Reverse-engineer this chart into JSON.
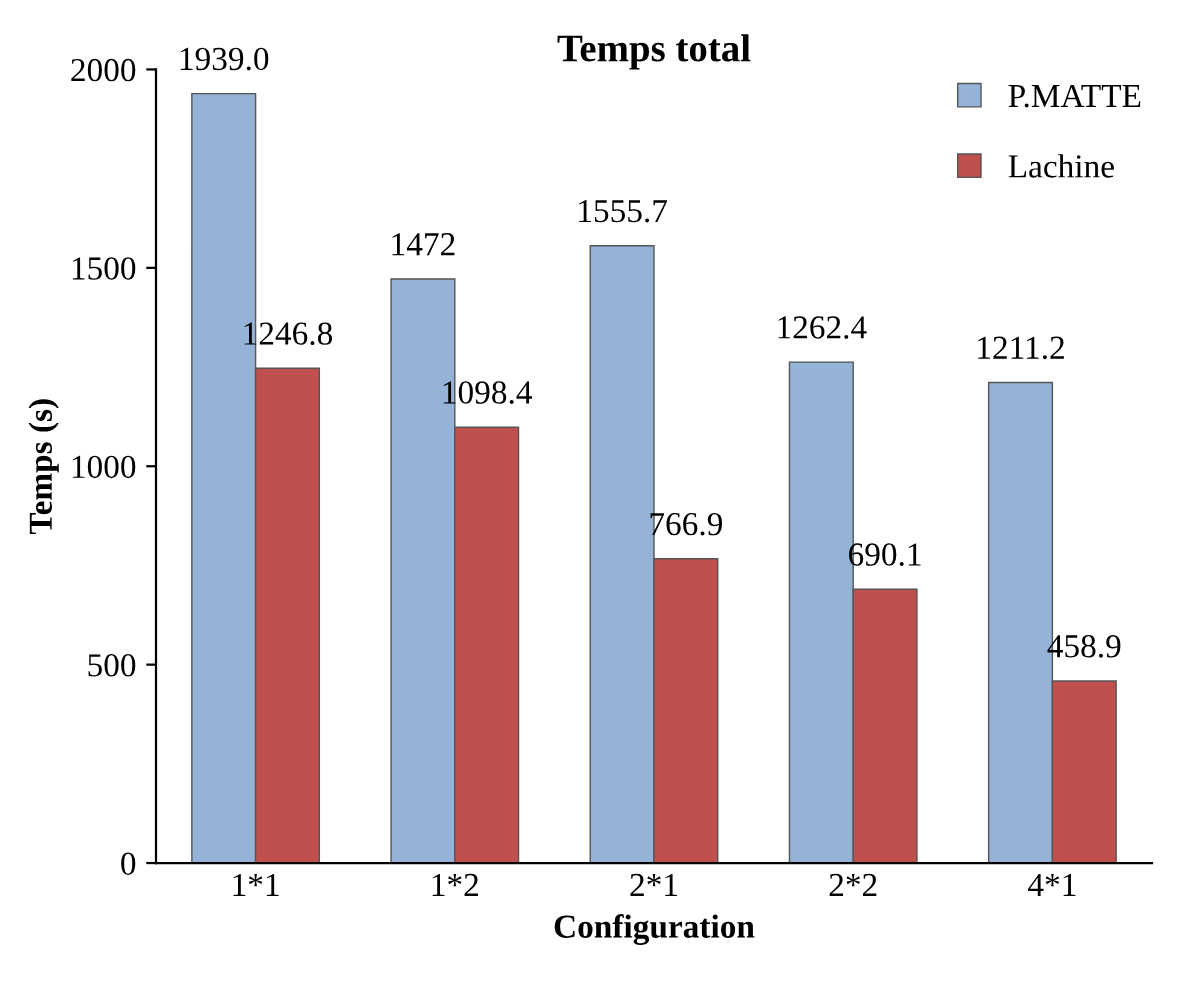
{
  "chart_data": {
    "type": "bar",
    "title": "Temps total",
    "xlabel": "Configuration",
    "ylabel": "Temps (s)",
    "categories": [
      "1*1",
      "1*2",
      "2*1",
      "2*2",
      "4*1"
    ],
    "series": [
      {
        "name": "P.MATTE",
        "color": "#95b3d7",
        "values": [
          1939.0,
          1472,
          1555.7,
          1262.4,
          1211.2
        ],
        "value_labels": [
          "1939.0",
          "1472",
          "1555.7",
          "1262.4",
          "1211.2"
        ]
      },
      {
        "name": "Lachine",
        "color": "#c0504d",
        "values": [
          1246.8,
          1098.4,
          766.9,
          690.1,
          458.9
        ],
        "value_labels": [
          "1246.8",
          "1098.4",
          "766.9",
          "690.1",
          "458.9"
        ]
      }
    ],
    "ylim": [
      0,
      2000
    ],
    "yticks": [
      0,
      500,
      1000,
      1500,
      2000
    ],
    "grid": false,
    "legend": "top right"
  }
}
